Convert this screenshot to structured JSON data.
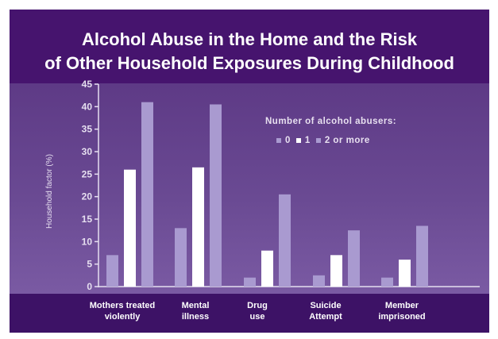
{
  "slide": {
    "title_line_1": "Alcohol Abuse in the Home and the Risk",
    "title_line_2": "of Other Household Exposures During Childhood"
  },
  "colors": {
    "title_background": "#46146e",
    "plot_background": "#6a4a93",
    "category_band": "#3d1266",
    "series_0": "#a99ad0",
    "series_1": "#ffffff",
    "series_2": "#a99ad0"
  },
  "chart_data": {
    "type": "bar",
    "title": "Alcohol Abuse in the Home and the Risk of Other Household Exposures During Childhood",
    "ylabel": "Household factor (%)",
    "xlabel": "",
    "ylim": [
      0,
      45
    ],
    "yticks": [
      0,
      5,
      10,
      15,
      20,
      25,
      30,
      35,
      40,
      45
    ],
    "grid": false,
    "legend_title": "Number of alcohol abusers:",
    "legend_placement": "top-right",
    "categories": [
      "Mothers treated\nviolently",
      "Mental\nillness",
      "Drug\nuse",
      "Suicide\nAttempt",
      "Member\nimprisoned"
    ],
    "series": [
      {
        "name": "0",
        "values": [
          7,
          13,
          2,
          2.5,
          2
        ]
      },
      {
        "name": "1",
        "values": [
          26,
          26.5,
          8,
          7,
          6
        ]
      },
      {
        "name": "2 or more",
        "values": [
          41,
          40.5,
          20.5,
          12.5,
          13.5
        ]
      }
    ]
  }
}
